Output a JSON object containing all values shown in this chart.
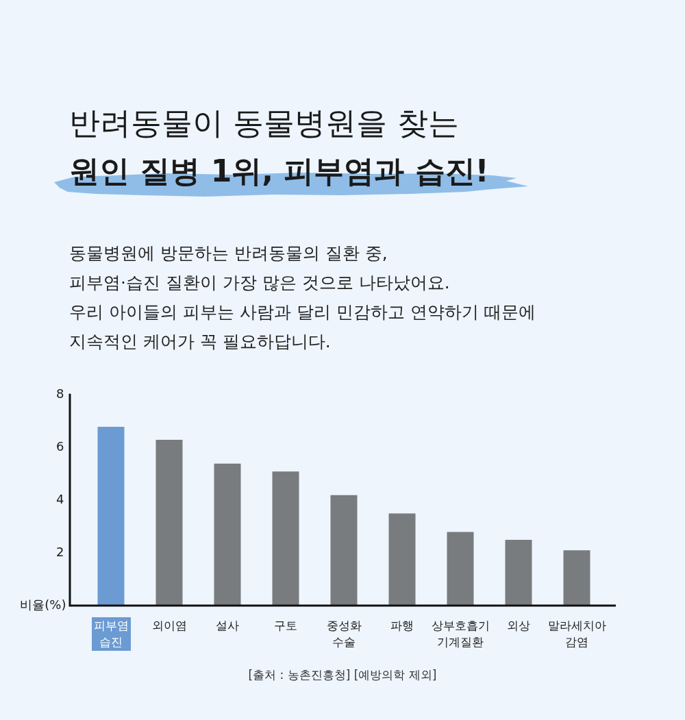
{
  "chart_data": {
    "type": "bar",
    "title": "반려동물이 동물병원을 찾는",
    "subtitle": "원인 질병 1위, 피부염과 습진!",
    "annotations": [
      "동물병원에 방문하는 반려동물의 질환 중,",
      "피부염·습진 질환이 가장 많은 것으로 나타났어요.",
      "우리 아이들의 피부는 사람과 달리 민감하고 연약하기 때문에",
      "지속적인 케어가 꼭 필요하답니다.",
      "[출처 : 농촌진흥청] [예방의학 제외]"
    ],
    "ylabel": "비율(%)",
    "categories": [
      "피부염 습진",
      "외이염",
      "설사",
      "구토",
      "중성화 수술",
      "파행",
      "상부호흡기 기계질환",
      "외상",
      "말라세치아 감염"
    ],
    "values": [
      6.8,
      6.3,
      5.4,
      5.1,
      4.2,
      3.5,
      2.8,
      2.5,
      2.1
    ],
    "colors": [
      "#6b9bd2",
      "#787c7e",
      "#787c7e",
      "#787c7e",
      "#787c7e",
      "#787c7e",
      "#787c7e",
      "#787c7e",
      "#787c7e"
    ],
    "ylim": [
      0,
      8
    ],
    "yticks": [
      2,
      4,
      6,
      8
    ]
  }
}
